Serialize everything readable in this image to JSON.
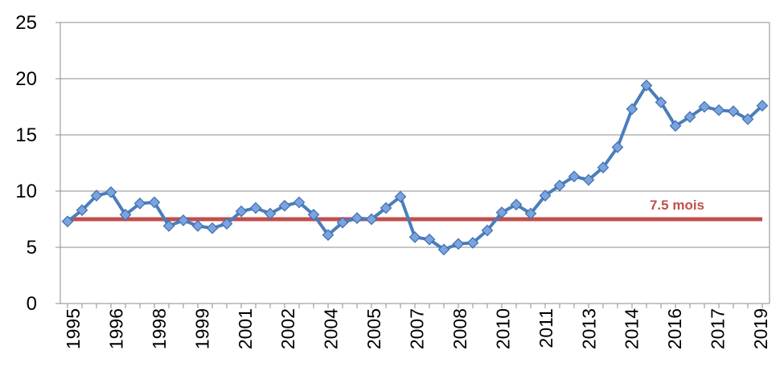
{
  "chart_data": {
    "type": "line",
    "title": "",
    "xlabel": "",
    "ylabel": "",
    "ylim": [
      0,
      25
    ],
    "yticks": [
      "0",
      "5",
      "10",
      "15",
      "20",
      "25"
    ],
    "xtick_labels": [
      "1995",
      "1996",
      "1998",
      "1999",
      "2001",
      "2002",
      "2004",
      "2005",
      "2007",
      "2008",
      "2010",
      "2011",
      "2013",
      "2014",
      "2016",
      "2017",
      "2019"
    ],
    "grid": true,
    "legend": "none",
    "series": [
      {
        "color": "#4a7ebb",
        "marker": "diamond",
        "values": [
          7.3,
          8.3,
          9.6,
          9.9,
          7.9,
          8.9,
          9.0,
          6.9,
          7.4,
          6.9,
          6.7,
          7.1,
          8.2,
          8.5,
          8.0,
          8.7,
          9.0,
          7.9,
          6.1,
          7.2,
          7.6,
          7.5,
          8.5,
          9.5,
          5.9,
          5.7,
          4.8,
          5.3,
          5.4,
          6.5,
          8.1,
          8.8,
          8.0,
          9.6,
          10.5,
          11.3,
          11.0,
          12.1,
          13.9,
          17.3,
          19.4,
          17.9,
          15.8,
          16.6,
          17.5,
          17.2,
          17.1,
          16.4,
          17.6
        ]
      }
    ],
    "reference_line": {
      "value": 7.5,
      "label": "7.5 mois",
      "color": "#c0504d"
    }
  }
}
